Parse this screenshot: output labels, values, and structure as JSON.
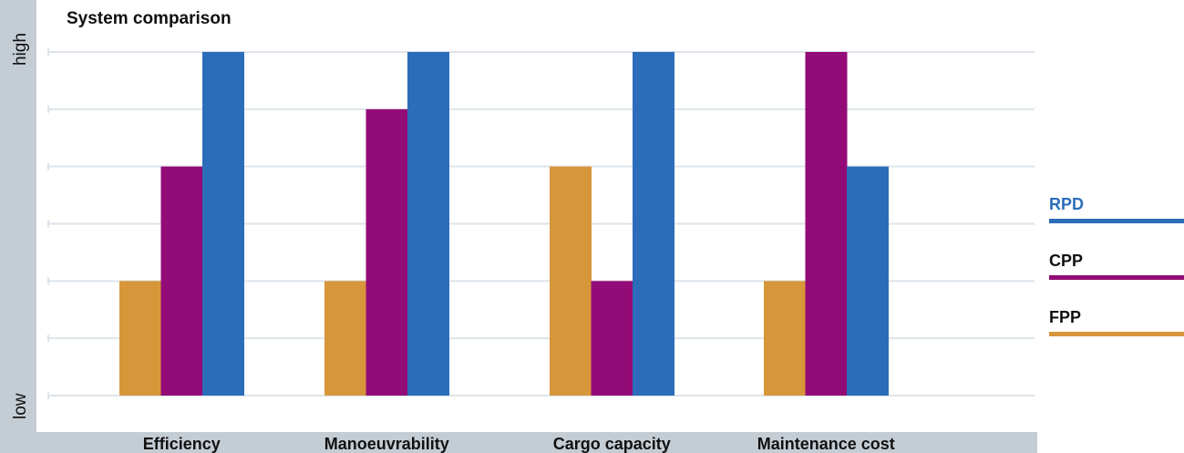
{
  "chart_data": {
    "type": "bar",
    "title": "System comparison",
    "ylabel_high": "high",
    "ylabel_low": "low",
    "categories": [
      "Efficiency",
      "Manoeuvrability",
      "Cargo capacity",
      "Maintenance cost"
    ],
    "series": [
      {
        "name": "FPP",
        "color": "#D8963A",
        "values": [
          2,
          2,
          4,
          2
        ]
      },
      {
        "name": "CPP",
        "color": "#930B76",
        "values": [
          4,
          5,
          2,
          6
        ]
      },
      {
        "name": "RPD",
        "color": "#2C6DBA",
        "values": [
          6,
          6,
          6,
          4
        ]
      }
    ],
    "legend_order": [
      "RPD",
      "CPP",
      "FPP"
    ],
    "legend_placement": "right",
    "ylim": [
      0,
      6
    ],
    "grid": true,
    "colors": {
      "axis_band": "#C5CDD4",
      "grid": "#DDE4EA",
      "legend_rpd_text": "#2C6DBA",
      "legend_text": "#111111"
    }
  }
}
